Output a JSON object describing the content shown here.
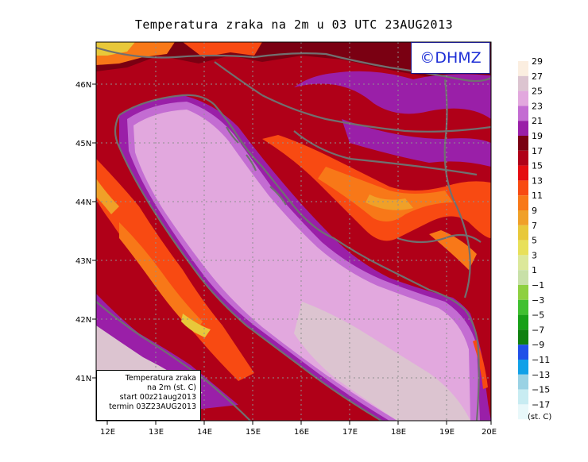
{
  "title": "Temperatura zraka na 2m u 03 UTC 23AUG2013",
  "logo": "©DHMZ",
  "info_box": {
    "line1": "Temperatura zraka",
    "line2": "na 2m (st. C)",
    "line3": "start 00z21aug2013",
    "line4": "termin 03Z23AUG2013"
  },
  "latitude_labels": [
    "46N",
    "45N",
    "44N",
    "43N",
    "42N",
    "41N"
  ],
  "longitude_labels": [
    "12E",
    "13E",
    "14E",
    "15E",
    "16E",
    "17E",
    "18E",
    "19E",
    "20E"
  ],
  "colorbar": {
    "unit": "(st. C)",
    "labels": [
      "29",
      "27",
      "25",
      "23",
      "21",
      "19",
      "17",
      "15",
      "13",
      "11",
      "9",
      "7",
      "5",
      "3",
      "1",
      "−1",
      "−3",
      "−5",
      "−7",
      "−9",
      "−11",
      "−13",
      "−15",
      "−17"
    ],
    "colors": [
      "#fbeee0",
      "#dcc4d0",
      "#e2a8de",
      "#c36cd2",
      "#9a1fa8",
      "#7a0012",
      "#b00018",
      "#e50c10",
      "#f84a12",
      "#f87818",
      "#f0a028",
      "#e8c83a",
      "#e8e05a",
      "#dce89a",
      "#c8e0a8",
      "#8ed040",
      "#40c030",
      "#18a018",
      "#108010",
      "#2050e8",
      "#10a0e8",
      "#9ad2e4",
      "#c8ecf2",
      "#e8f8fa"
    ]
  }
}
